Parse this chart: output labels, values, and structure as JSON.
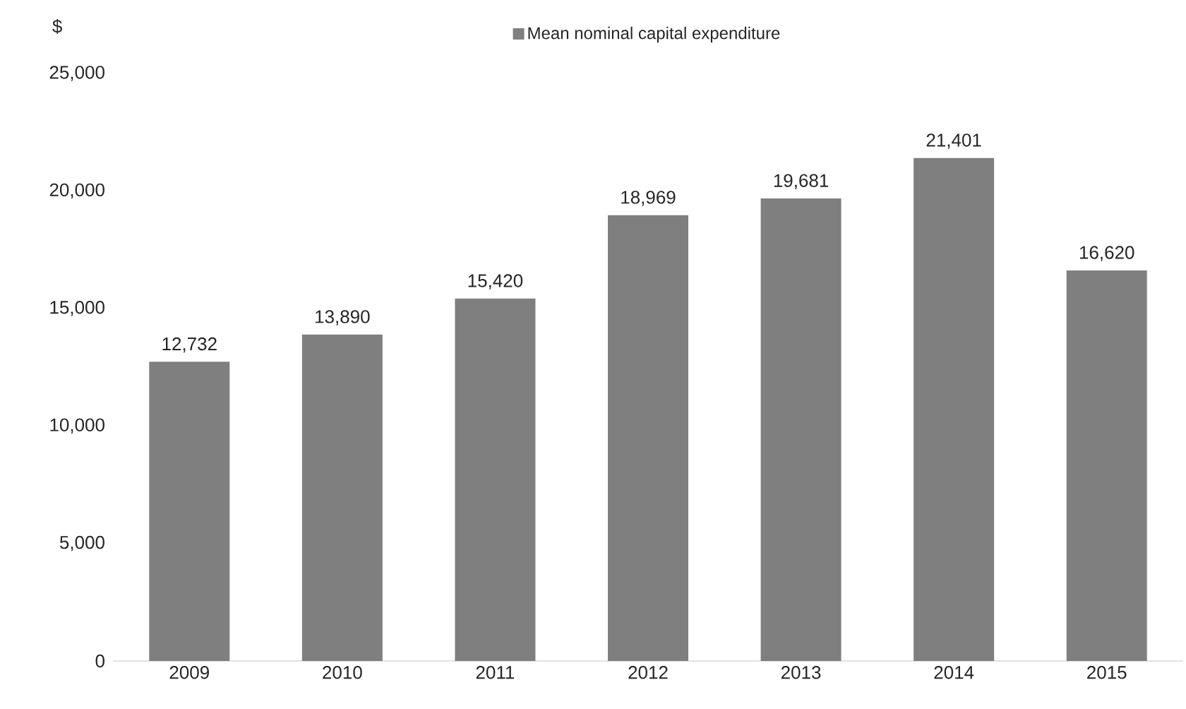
{
  "chart_data": {
    "type": "bar",
    "ylabel": "$",
    "categories": [
      "2009",
      "2010",
      "2011",
      "2012",
      "2013",
      "2014",
      "2015"
    ],
    "series": [
      {
        "name": "Mean nominal capital expenditure",
        "color": "#7f7f7f",
        "values": [
          12732,
          13890,
          15420,
          18969,
          19681,
          21401,
          16620
        ],
        "value_labels": [
          "12,732",
          "13,890",
          "15,420",
          "18,969",
          "19,681",
          "21,401",
          "16,620"
        ]
      }
    ],
    "ylim": [
      0,
      25000
    ],
    "yticks": [
      0,
      {
        "value": 5000,
        "label": "5,000"
      },
      {
        "value": 10000,
        "label": "10,000"
      },
      {
        "value": 15000,
        "label": "15,000"
      },
      {
        "value": 20000,
        "label": "20,000"
      },
      {
        "value": 25000,
        "label": "25,000"
      }
    ],
    "legend": "top",
    "grid": false
  }
}
